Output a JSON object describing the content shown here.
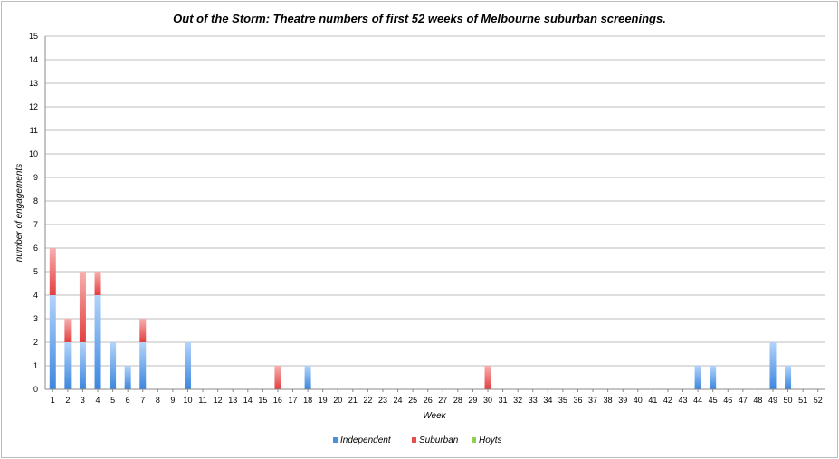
{
  "chart_data": {
    "type": "bar",
    "stacked": true,
    "title": "Out of the Storm: Theatre numbers of first 52 weeks of Melbourne suburban screenings.",
    "xlabel": "Week",
    "ylabel": "number of engagements",
    "ylim": [
      0,
      15
    ],
    "yticks": [
      "0",
      "1",
      "2",
      "3",
      "4",
      "5",
      "6",
      "7",
      "8",
      "9",
      "10",
      "11",
      "12",
      "13",
      "14",
      "15"
    ],
    "categories": [
      "1",
      "2",
      "3",
      "4",
      "5",
      "6",
      "7",
      "8",
      "9",
      "10",
      "11",
      "12",
      "13",
      "14",
      "15",
      "16",
      "17",
      "18",
      "19",
      "20",
      "21",
      "22",
      "23",
      "24",
      "25",
      "26",
      "27",
      "28",
      "29",
      "30",
      "31",
      "32",
      "33",
      "34",
      "35",
      "36",
      "37",
      "38",
      "39",
      "40",
      "41",
      "42",
      "43",
      "44",
      "45",
      "46",
      "47",
      "48",
      "49",
      "50",
      "51",
      "52"
    ],
    "series": [
      {
        "name": "Independent",
        "color": "#4a90e2",
        "values": [
          4,
          2,
          2,
          4,
          2,
          1,
          2,
          0,
          0,
          2,
          0,
          0,
          0,
          0,
          0,
          0,
          0,
          1,
          0,
          0,
          0,
          0,
          0,
          0,
          0,
          0,
          0,
          0,
          0,
          0,
          0,
          0,
          0,
          0,
          0,
          0,
          0,
          0,
          0,
          0,
          0,
          0,
          0,
          1,
          1,
          0,
          0,
          0,
          2,
          1,
          0,
          0
        ]
      },
      {
        "name": "Suburban",
        "color": "#e84d4d",
        "values": [
          2,
          1,
          3,
          1,
          0,
          0,
          1,
          0,
          0,
          0,
          0,
          0,
          0,
          0,
          0,
          1,
          0,
          0,
          0,
          0,
          0,
          0,
          0,
          0,
          0,
          0,
          0,
          0,
          0,
          1,
          0,
          0,
          0,
          0,
          0,
          0,
          0,
          0,
          0,
          0,
          0,
          0,
          0,
          0,
          0,
          0,
          0,
          0,
          0,
          0,
          0,
          0
        ]
      },
      {
        "name": "Hoyts",
        "color": "#8fd14f",
        "values": [
          0,
          0,
          0,
          0,
          0,
          0,
          0,
          0,
          0,
          0,
          0,
          0,
          0,
          0,
          0,
          0,
          0,
          0,
          0,
          0,
          0,
          0,
          0,
          0,
          0,
          0,
          0,
          0,
          0,
          0,
          0,
          0,
          0,
          0,
          0,
          0,
          0,
          0,
          0,
          0,
          0,
          0,
          0,
          0,
          0,
          0,
          0,
          0,
          0,
          0,
          0,
          0
        ]
      }
    ],
    "grid": true,
    "legend": "bottom"
  }
}
